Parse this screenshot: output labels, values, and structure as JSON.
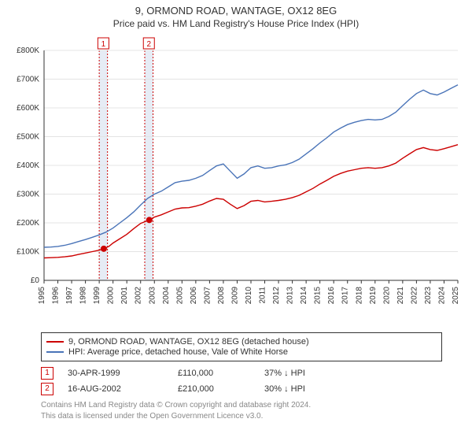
{
  "header": {
    "title": "9, ORMOND ROAD, WANTAGE, OX12 8EG",
    "subtitle": "Price paid vs. HM Land Registry's House Price Index (HPI)"
  },
  "chart": {
    "type": "line",
    "background_color": "#ffffff",
    "grid_color": "#e4e4e4",
    "axis_color": "#333333",
    "label_fontsize": 10,
    "x": {
      "years_start": 1995,
      "years_end": 2025,
      "tick_step_years": 1
    },
    "y": {
      "min": 0,
      "max": 800000,
      "tick_step": 100000,
      "tick_prefix": "£",
      "tick_suffix": "K",
      "tick_divisor": 1000
    },
    "highlight_bands": [
      {
        "from_year": 1999.0,
        "to_year": 1999.6,
        "fill": "#e6ecf5",
        "dash_color": "#cc0000"
      },
      {
        "from_year": 2002.3,
        "to_year": 2002.9,
        "fill": "#e6ecf5",
        "dash_color": "#cc0000"
      }
    ],
    "band_labels": [
      {
        "year": 1999.3,
        "text": "1",
        "border_color": "#cc0000",
        "text_color": "#cc0000"
      },
      {
        "year": 2002.6,
        "text": "2",
        "border_color": "#cc0000",
        "text_color": "#cc0000"
      }
    ],
    "series": [
      {
        "name": "property",
        "color": "#cc0000",
        "line_width": 1.4,
        "legend_label": "9, ORMOND ROAD, WANTAGE, OX12 8EG (detached house)",
        "points_year_value": [
          [
            1995.0,
            78000
          ],
          [
            1995.5,
            79000
          ],
          [
            1996.0,
            80000
          ],
          [
            1996.5,
            82000
          ],
          [
            1997.0,
            85000
          ],
          [
            1997.5,
            90000
          ],
          [
            1998.0,
            95000
          ],
          [
            1998.5,
            100000
          ],
          [
            1999.0,
            105000
          ],
          [
            1999.33,
            110000
          ],
          [
            1999.7,
            118000
          ],
          [
            2000.0,
            130000
          ],
          [
            2000.5,
            145000
          ],
          [
            2001.0,
            160000
          ],
          [
            2001.5,
            180000
          ],
          [
            2002.0,
            198000
          ],
          [
            2002.63,
            210000
          ],
          [
            2003.0,
            220000
          ],
          [
            2003.5,
            228000
          ],
          [
            2004.0,
            238000
          ],
          [
            2004.5,
            248000
          ],
          [
            2005.0,
            252000
          ],
          [
            2005.5,
            253000
          ],
          [
            2006.0,
            258000
          ],
          [
            2006.5,
            265000
          ],
          [
            2007.0,
            276000
          ],
          [
            2007.5,
            285000
          ],
          [
            2008.0,
            282000
          ],
          [
            2008.5,
            265000
          ],
          [
            2009.0,
            250000
          ],
          [
            2009.5,
            260000
          ],
          [
            2010.0,
            275000
          ],
          [
            2010.5,
            278000
          ],
          [
            2011.0,
            273000
          ],
          [
            2011.5,
            275000
          ],
          [
            2012.0,
            278000
          ],
          [
            2012.5,
            282000
          ],
          [
            2013.0,
            288000
          ],
          [
            2013.5,
            296000
          ],
          [
            2014.0,
            308000
          ],
          [
            2014.5,
            320000
          ],
          [
            2015.0,
            335000
          ],
          [
            2015.5,
            348000
          ],
          [
            2016.0,
            362000
          ],
          [
            2016.5,
            372000
          ],
          [
            2017.0,
            380000
          ],
          [
            2017.5,
            385000
          ],
          [
            2018.0,
            390000
          ],
          [
            2018.5,
            392000
          ],
          [
            2019.0,
            390000
          ],
          [
            2019.5,
            392000
          ],
          [
            2020.0,
            398000
          ],
          [
            2020.5,
            408000
          ],
          [
            2021.0,
            425000
          ],
          [
            2021.5,
            440000
          ],
          [
            2022.0,
            455000
          ],
          [
            2022.5,
            462000
          ],
          [
            2023.0,
            455000
          ],
          [
            2023.5,
            452000
          ],
          [
            2024.0,
            458000
          ],
          [
            2024.5,
            465000
          ],
          [
            2025.0,
            472000
          ]
        ],
        "markers": [
          {
            "year": 1999.33,
            "value": 110000,
            "radius": 4
          },
          {
            "year": 2002.63,
            "value": 210000,
            "radius": 4
          }
        ]
      },
      {
        "name": "hpi",
        "color": "#4a74b8",
        "line_width": 1.4,
        "legend_label": "HPI: Average price, detached house, Vale of White Horse",
        "points_year_value": [
          [
            1995.0,
            115000
          ],
          [
            1995.5,
            116000
          ],
          [
            1996.0,
            118000
          ],
          [
            1996.5,
            122000
          ],
          [
            1997.0,
            128000
          ],
          [
            1997.5,
            135000
          ],
          [
            1998.0,
            142000
          ],
          [
            1998.5,
            150000
          ],
          [
            1999.0,
            158000
          ],
          [
            1999.5,
            168000
          ],
          [
            2000.0,
            182000
          ],
          [
            2000.5,
            200000
          ],
          [
            2001.0,
            218000
          ],
          [
            2001.5,
            238000
          ],
          [
            2002.0,
            262000
          ],
          [
            2002.5,
            285000
          ],
          [
            2003.0,
            300000
          ],
          [
            2003.5,
            310000
          ],
          [
            2004.0,
            325000
          ],
          [
            2004.5,
            340000
          ],
          [
            2005.0,
            345000
          ],
          [
            2005.5,
            348000
          ],
          [
            2006.0,
            355000
          ],
          [
            2006.5,
            365000
          ],
          [
            2007.0,
            382000
          ],
          [
            2007.5,
            398000
          ],
          [
            2008.0,
            405000
          ],
          [
            2008.5,
            380000
          ],
          [
            2009.0,
            355000
          ],
          [
            2009.5,
            370000
          ],
          [
            2010.0,
            392000
          ],
          [
            2010.5,
            398000
          ],
          [
            2011.0,
            390000
          ],
          [
            2011.5,
            392000
          ],
          [
            2012.0,
            398000
          ],
          [
            2012.5,
            402000
          ],
          [
            2013.0,
            410000
          ],
          [
            2013.5,
            422000
          ],
          [
            2014.0,
            440000
          ],
          [
            2014.5,
            458000
          ],
          [
            2015.0,
            478000
          ],
          [
            2015.5,
            496000
          ],
          [
            2016.0,
            516000
          ],
          [
            2016.5,
            530000
          ],
          [
            2017.0,
            542000
          ],
          [
            2017.5,
            550000
          ],
          [
            2018.0,
            556000
          ],
          [
            2018.5,
            560000
          ],
          [
            2019.0,
            558000
          ],
          [
            2019.5,
            560000
          ],
          [
            2020.0,
            570000
          ],
          [
            2020.5,
            585000
          ],
          [
            2021.0,
            608000
          ],
          [
            2021.5,
            630000
          ],
          [
            2022.0,
            650000
          ],
          [
            2022.5,
            662000
          ],
          [
            2023.0,
            650000
          ],
          [
            2023.5,
            645000
          ],
          [
            2024.0,
            655000
          ],
          [
            2024.5,
            668000
          ],
          [
            2025.0,
            680000
          ]
        ],
        "markers": []
      }
    ]
  },
  "transactions": [
    {
      "badge": "1",
      "date": "30-APR-1999",
      "price": "£110,000",
      "delta": "37% ↓ HPI"
    },
    {
      "badge": "2",
      "date": "16-AUG-2002",
      "price": "£210,000",
      "delta": "30% ↓ HPI"
    }
  ],
  "footer": {
    "line1": "Contains HM Land Registry data © Crown copyright and database right 2024.",
    "line2": "This data is licensed under the Open Government Licence v3.0."
  }
}
